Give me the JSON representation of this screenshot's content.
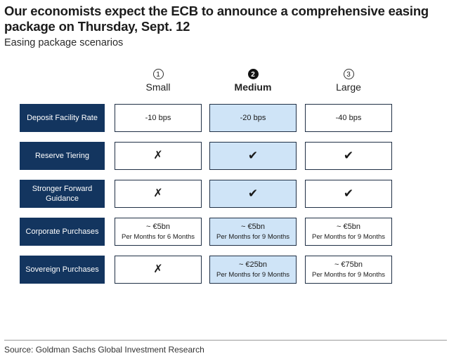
{
  "title": "Our economists expect the ECB to announce a comprehensive easing package on Thursday, Sept. 12",
  "subtitle": "Easing package scenarios",
  "columns": [
    {
      "number": "1",
      "name": "Small"
    },
    {
      "number": "2",
      "name": "Medium"
    },
    {
      "number": "3",
      "name": "Large"
    }
  ],
  "rows": [
    {
      "label": "Deposit Facility Rate",
      "cells": [
        {
          "main": "-10 bps",
          "sub": ""
        },
        {
          "main": "-20 bps",
          "sub": ""
        },
        {
          "main": "-40 bps",
          "sub": ""
        }
      ]
    },
    {
      "label": "Reserve Tiering",
      "cells": [
        {
          "main": "✗",
          "sub": ""
        },
        {
          "main": "✔",
          "sub": ""
        },
        {
          "main": "✔",
          "sub": ""
        }
      ]
    },
    {
      "label": "Stronger Forward Guidance",
      "cells": [
        {
          "main": "✗",
          "sub": ""
        },
        {
          "main": "✔",
          "sub": ""
        },
        {
          "main": "✔",
          "sub": ""
        }
      ]
    },
    {
      "label": "Corporate Purchases",
      "cells": [
        {
          "main": "~ €5bn",
          "sub": "Per Months for 6 Months"
        },
        {
          "main": "~ €5bn",
          "sub": "Per Months for 9 Months"
        },
        {
          "main": "~ €5bn",
          "sub": "Per Months for 9 Months"
        }
      ]
    },
    {
      "label": "Sovereign Purchases",
      "cells": [
        {
          "main": "✗",
          "sub": ""
        },
        {
          "main": "~ €25bn",
          "sub": "Per Months for 9 Months"
        },
        {
          "main": "~ €75bn",
          "sub": "Per Months for 9 Months"
        }
      ]
    }
  ],
  "source": "Source: Goldman Sachs Global Investment Research",
  "colors": {
    "row_label_bg": "#13355f",
    "highlight_col_bg": "#cfe4f7",
    "cell_border": "#1f2f45"
  }
}
